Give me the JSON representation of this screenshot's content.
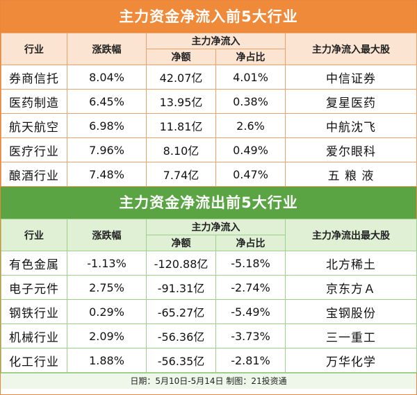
{
  "inflow": {
    "title": "主力资金净流入前5大行业",
    "headers": {
      "industry": "行业",
      "change": "涨跌幅",
      "main_net": "主力净流入",
      "amount": "净额",
      "ratio": "净占比",
      "top_stock": "主力净流入最大股"
    },
    "rows": [
      {
        "industry": "券商信托",
        "change": "8.04%",
        "amount": "42.07亿",
        "ratio": "4.01%",
        "stock": "中信证券"
      },
      {
        "industry": "医药制造",
        "change": "6.45%",
        "amount": "13.95亿",
        "ratio": "0.38%",
        "stock": "复星医药"
      },
      {
        "industry": "航天航空",
        "change": "6.98%",
        "amount": "11.81亿",
        "ratio": "2.6%",
        "stock": "中航沈飞"
      },
      {
        "industry": "医疗行业",
        "change": "7.96%",
        "amount": "8.10亿",
        "ratio": "0.49%",
        "stock": "爱尔眼科"
      },
      {
        "industry": "酿酒行业",
        "change": "7.48%",
        "amount": "7.74亿",
        "ratio": "0.47%",
        "stock": "五 粮 液"
      }
    ]
  },
  "outflow": {
    "title": "主力资金净流出前5大行业",
    "headers": {
      "industry": "行业",
      "change": "涨跌幅",
      "main_net": "主力净流入",
      "amount": "净额",
      "ratio": "净占比",
      "top_stock": "主力净流出最大股"
    },
    "rows": [
      {
        "industry": "有色金属",
        "change": "-1.13%",
        "amount": "-120.88亿",
        "ratio": "-5.18%",
        "stock": "北方稀土"
      },
      {
        "industry": "电子元件",
        "change": "2.75%",
        "amount": "-91.31亿",
        "ratio": "-2.74%",
        "stock": "京东方Ａ"
      },
      {
        "industry": "钢铁行业",
        "change": "0.29%",
        "amount": "-65.27亿",
        "ratio": "-5.49%",
        "stock": "宝钢股份"
      },
      {
        "industry": "机械行业",
        "change": "2.09%",
        "amount": "-56.36亿",
        "ratio": "-3.73%",
        "stock": "三一重工"
      },
      {
        "industry": "化工行业",
        "change": "1.88%",
        "amount": "-56.35亿",
        "ratio": "-2.81%",
        "stock": "万华化学"
      }
    ]
  },
  "footer": "日期：5月10日-5月14日 制图：21投资通",
  "colors": {
    "orange": "#ee8a3a",
    "green": "#5aa444"
  }
}
